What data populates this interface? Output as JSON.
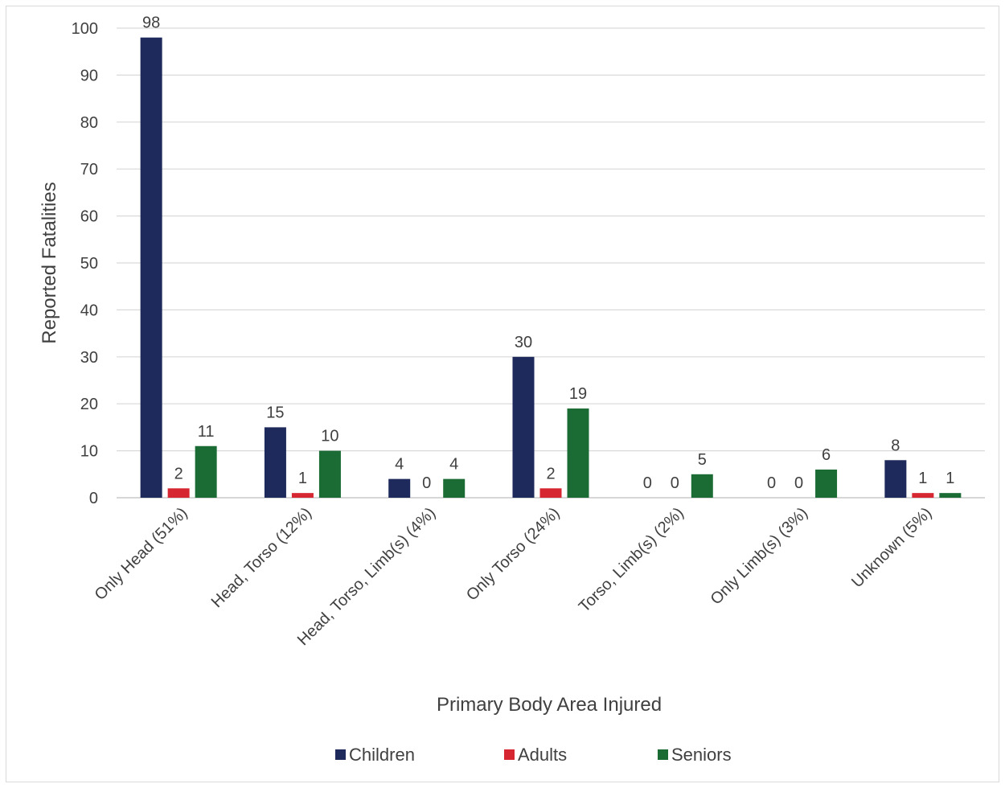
{
  "chart_data": {
    "type": "bar",
    "title": "",
    "xlabel": "Primary Body Area Injured",
    "ylabel": "Reported Fatalities",
    "ylim": [
      0,
      100
    ],
    "yticks": [
      "0",
      "10",
      "20",
      "30",
      "40",
      "50",
      "60",
      "70",
      "80",
      "90",
      "100"
    ],
    "grid": true,
    "legend_position": "bottom",
    "categories": [
      "Only Head (51%)",
      "Head, Torso (12%)",
      "Head, Torso, Limb(s) (4%)",
      "Only Torso (24%)",
      "Torso, Limb(s) (2%)",
      "Only Limb(s) (3%)",
      "Unknown (5%)"
    ],
    "series": [
      {
        "name": "Children",
        "color": "#1f2a5c",
        "values": [
          98,
          15,
          4,
          30,
          0,
          0,
          8
        ]
      },
      {
        "name": "Adults",
        "color": "#d62631",
        "values": [
          2,
          1,
          0,
          2,
          0,
          0,
          1
        ]
      },
      {
        "name": "Seniors",
        "color": "#1b6b35",
        "values": [
          11,
          10,
          4,
          19,
          5,
          6,
          1
        ]
      }
    ]
  }
}
